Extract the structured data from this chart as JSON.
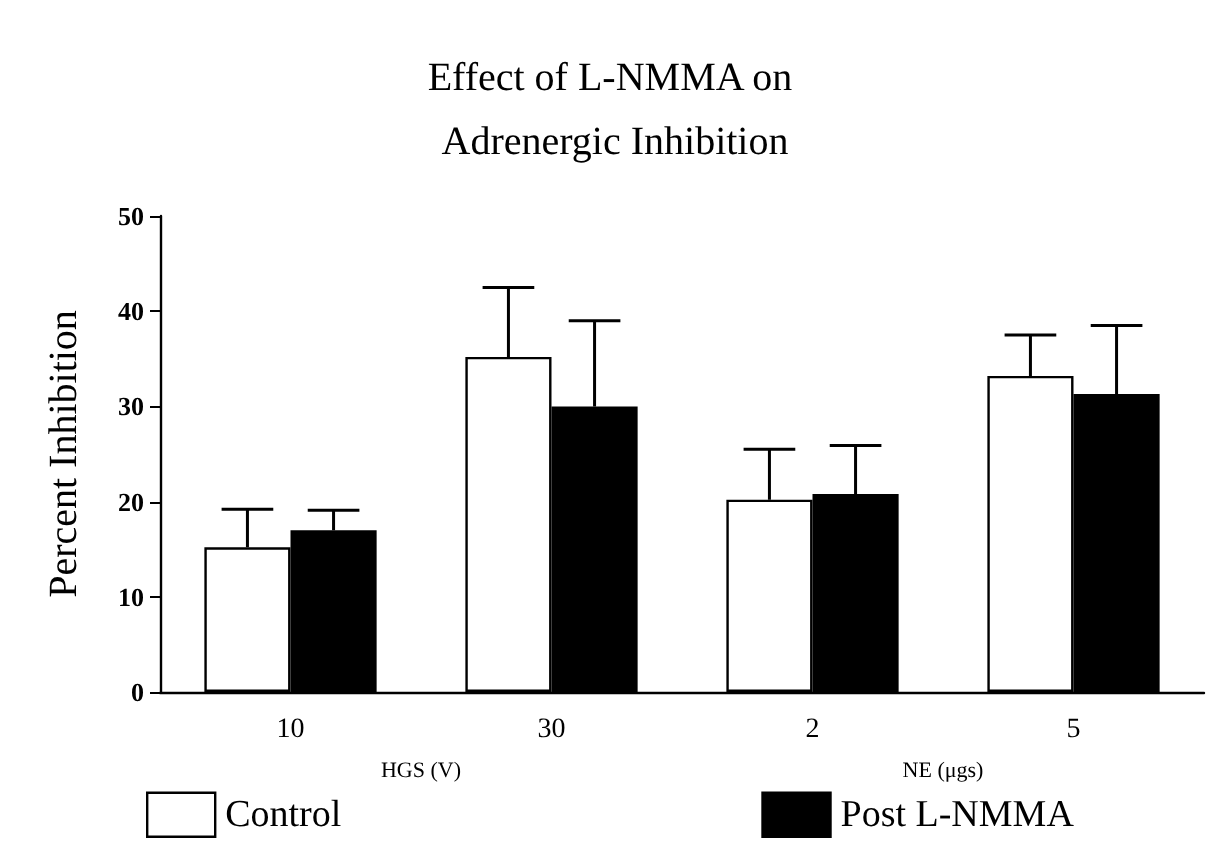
{
  "chart_data": {
    "type": "bar",
    "title": "Effect of L-NMMA on Adrenergic Inhibition",
    "ylabel": "Percent Inhibition",
    "categories": [
      "10",
      "30",
      "2",
      "5"
    ],
    "series": [
      {
        "name": "Control",
        "color": "#ffffff",
        "values": [
          15.2,
          35.2,
          20.2,
          33.2
        ],
        "errors": [
          [
            15.2,
            19.2
          ],
          [
            35.2,
            42.5
          ],
          [
            20.2,
            25.5
          ],
          [
            33.2,
            37.5
          ]
        ]
      },
      {
        "name": "Post L-NMMA",
        "color": "#000000",
        "values": [
          17.0,
          30.0,
          20.8,
          31.3
        ],
        "errors": [
          [
            17.0,
            19.1
          ],
          [
            30.0,
            39.0
          ],
          [
            20.8,
            25.9
          ],
          [
            31.3,
            38.5
          ]
        ]
      }
    ],
    "annotations": [
      "HGS (V)",
      "NE (μgs)"
    ],
    "ylim": [
      0,
      50
    ],
    "yticks": [
      0,
      10,
      20,
      30,
      40,
      50
    ],
    "grid": false,
    "legend": "bottom"
  }
}
